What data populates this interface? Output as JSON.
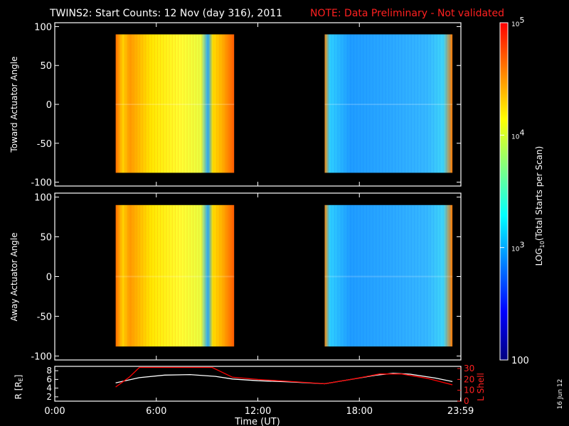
{
  "title": "TWINS2: Start Counts: 12 Nov (day 316), 2011",
  "note": "NOTE: Data Preliminary - Not validated",
  "date_stamp": "16 Jun 12",
  "chart_data": [
    {
      "type": "heatmap",
      "panel": "top",
      "ylabel": "Toward Actuator Angle",
      "ylim": [
        -105,
        105
      ],
      "yticks": [
        100,
        50,
        0,
        -50,
        -100
      ],
      "xlim": [
        0,
        24
      ],
      "segments": [
        {
          "t_start": 3.6,
          "t_end": 10.6,
          "angle_range": [
            -88,
            90
          ],
          "level": "high (~1e4-1e5)",
          "dominant_colors": [
            "orange",
            "yellow"
          ]
        },
        {
          "t_start": 15.95,
          "t_end": 23.5,
          "angle_range": [
            -88,
            90
          ],
          "level": "low (~1e3)",
          "dominant_colors": [
            "cyan",
            "light blue"
          ]
        }
      ]
    },
    {
      "type": "heatmap",
      "panel": "middle",
      "ylabel": "Away Actuator Angle",
      "ylim": [
        -105,
        105
      ],
      "yticks": [
        100,
        50,
        0,
        -50,
        -100
      ],
      "xlim": [
        0,
        24
      ],
      "segments": [
        {
          "t_start": 3.6,
          "t_end": 10.6,
          "angle_range": [
            -88,
            90
          ],
          "level": "high (~1e4-1e5)",
          "dominant_colors": [
            "orange",
            "yellow"
          ]
        },
        {
          "t_start": 15.95,
          "t_end": 23.5,
          "angle_range": [
            -88,
            90
          ],
          "level": "low (~1e3)",
          "dominant_colors": [
            "cyan",
            "light blue"
          ]
        }
      ]
    },
    {
      "type": "line",
      "panel": "bottom",
      "xlabel": "Time (UT)",
      "xticks": [
        "0:00",
        "6:00",
        "12:00",
        "18:00",
        "23:59"
      ],
      "ylabel_left": "R [R",
      "ylabel_left_sub": "E",
      "ylabel_left_end": "]",
      "ylabel_right": "L Shell",
      "ylim_left": [
        1,
        9
      ],
      "ylim_right": [
        0,
        32
      ],
      "yticks_left": [
        8,
        6,
        4,
        2
      ],
      "yticks_right": [
        30,
        20,
        10,
        0
      ],
      "series": [
        {
          "name": "R",
          "axis": "left",
          "color": "#ffffff",
          "x": [
            3.6,
            5,
            6.5,
            8,
            9.5,
            10.5,
            12,
            14,
            15.95,
            17.5,
            19,
            20,
            21,
            22.5,
            23.5
          ],
          "y": [
            5.2,
            6.4,
            7.0,
            7.1,
            6.7,
            6.1,
            5.7,
            5.4,
            5.0,
            6.0,
            7.0,
            7.4,
            7.2,
            6.3,
            5.5
          ]
        },
        {
          "name": "L Shell",
          "axis": "right",
          "color": "#ff0000",
          "x": [
            3.6,
            4.4,
            5.0,
            9.3,
            10.5,
            12,
            14,
            15.95,
            17.5,
            19.2,
            20.5,
            22,
            23.5
          ],
          "y": [
            13,
            22,
            31,
            31,
            22,
            20,
            18,
            16,
            20,
            25,
            25,
            21,
            15
          ]
        }
      ]
    }
  ],
  "colorbar": {
    "label": "LOG",
    "label_sub": "10",
    "label_end": "(Total Starts per Scan)",
    "ticks": [
      {
        "exp": "5",
        "base": "10"
      },
      {
        "exp": "4",
        "base": "10"
      },
      {
        "exp": "3",
        "base": "10"
      },
      {
        "plain": "100"
      }
    ],
    "colors": [
      "#00007f",
      "#0000ff",
      "#0080ff",
      "#00ffff",
      "#80ff80",
      "#ffff00",
      "#ff8000",
      "#ff0000"
    ]
  }
}
